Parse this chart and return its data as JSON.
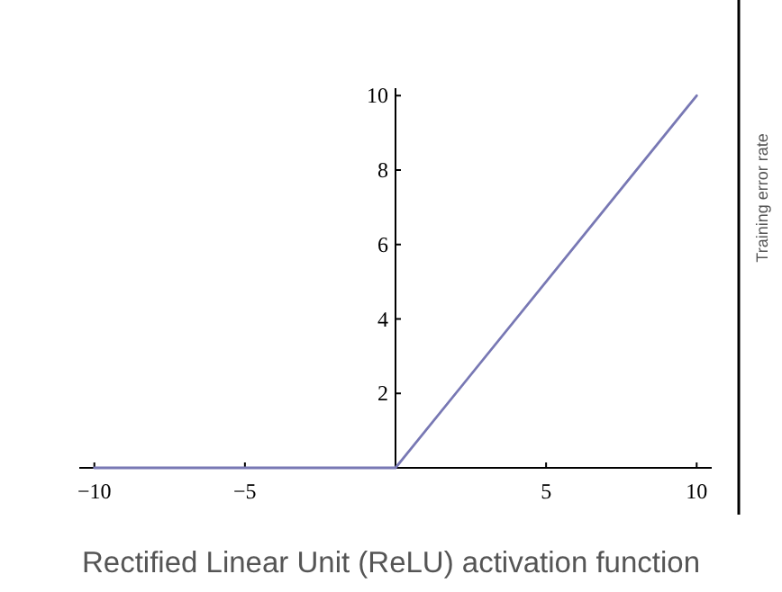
{
  "chart_data": {
    "type": "line",
    "x": [
      -10,
      0,
      10
    ],
    "series": [
      {
        "color": "#7878b4",
        "values": [
          0,
          0,
          10
        ]
      }
    ],
    "xlim": [
      -10.5,
      10.5
    ],
    "ylim": [
      0,
      10.2
    ],
    "xticks": [
      {
        "value": -10,
        "label": "−10"
      },
      {
        "value": -5,
        "label": "−5"
      },
      5,
      10
    ],
    "yticks": [
      2,
      4,
      6,
      8,
      10
    ],
    "marker": "none",
    "line_style": "solid",
    "annotations": [
      "Rectified Linear Unit (ReLU) activation function",
      "Training error rate"
    ]
  }
}
